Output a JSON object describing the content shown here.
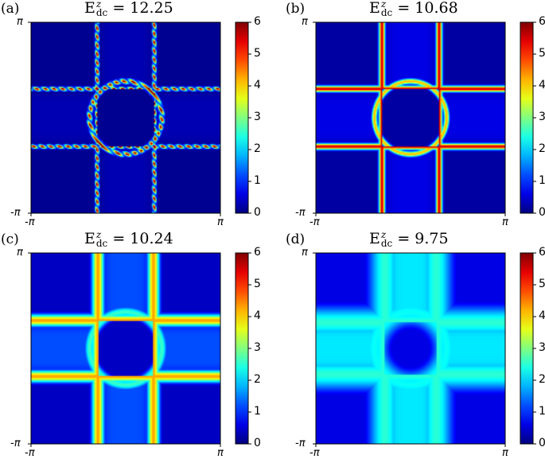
{
  "chart_data": [
    {
      "type": "heatmap",
      "panel_label": "(a)",
      "title_main": "E",
      "title_sup": "z",
      "title_sub": "dc",
      "title_value": " = 12.25",
      "x_ticks": [
        "-π",
        "π"
      ],
      "y_ticks": [
        "π",
        "-π"
      ],
      "xlim": [
        -3.14159,
        3.14159
      ],
      "ylim": [
        -3.14159,
        3.14159
      ],
      "colorbar": {
        "ticks": [
          0,
          1,
          2,
          3,
          4,
          5,
          6
        ],
        "range": [
          0,
          6
        ],
        "colormap": "jet"
      },
      "features": {
        "line_offset": 0.95,
        "line_width": 0.04,
        "line_peak": 5.8,
        "circle_radius": 1.2,
        "circle_peak": 5.8,
        "background": 0.1,
        "modulated": true
      }
    },
    {
      "type": "heatmap",
      "panel_label": "(b)",
      "title_main": "E",
      "title_sup": "z",
      "title_sub": "dc",
      "title_value": " = 10.68",
      "x_ticks": [
        "-π",
        "π"
      ],
      "y_ticks": [
        "π",
        "-π"
      ],
      "xlim": [
        -3.14159,
        3.14159
      ],
      "ylim": [
        -3.14159,
        3.14159
      ],
      "colorbar": {
        "ticks": [
          0,
          1,
          2,
          3,
          4,
          5,
          6
        ],
        "range": [
          0,
          6
        ],
        "colormap": "jet"
      },
      "features": {
        "line_offset": 0.95,
        "line_width": 0.07,
        "line_peak": 5.6,
        "circle_radius": 1.2,
        "circle_peak": 4.2,
        "background": 0.2,
        "modulated": false
      }
    },
    {
      "type": "heatmap",
      "panel_label": "(c)",
      "title_main": "E",
      "title_sup": "z",
      "title_sub": "dc",
      "title_value": " = 10.24",
      "x_ticks": [
        "-π",
        "π"
      ],
      "y_ticks": [
        "π",
        "-π"
      ],
      "xlim": [
        -3.14159,
        3.14159
      ],
      "ylim": [
        -3.14159,
        3.14159
      ],
      "colorbar": {
        "ticks": [
          0,
          1,
          2,
          3,
          4,
          5,
          6
        ],
        "range": [
          0,
          6
        ],
        "colormap": "jet"
      },
      "features": {
        "line_offset": 0.92,
        "line_width": 0.14,
        "line_peak": 4.3,
        "circle_radius": 1.2,
        "circle_peak": 2.6,
        "background": 0.4,
        "modulated": false
      }
    },
    {
      "type": "heatmap",
      "panel_label": "(d)",
      "title_main": "E",
      "title_sup": "z",
      "title_sub": "dc",
      "title_value": " = 9.75",
      "x_ticks": [
        "-π",
        "π"
      ],
      "y_ticks": [
        "π",
        "-π"
      ],
      "xlim": [
        -3.14159,
        3.14159
      ],
      "ylim": [
        -3.14159,
        3.14159
      ],
      "colorbar": {
        "ticks": [
          0,
          1,
          2,
          3,
          4,
          5,
          6
        ],
        "range": [
          0,
          6
        ],
        "colormap": "jet"
      },
      "features": {
        "line_offset": 0.85,
        "line_width": 0.4,
        "line_peak": 2.5,
        "circle_radius": 1.2,
        "circle_peak": 2.3,
        "background": 0.6,
        "modulated": false
      }
    }
  ]
}
